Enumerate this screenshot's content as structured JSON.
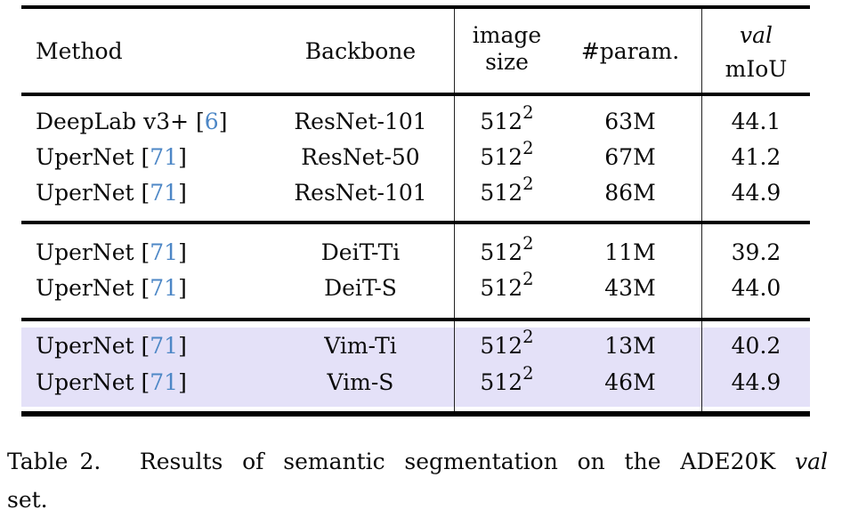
{
  "colors": {
    "highlight": "#e4e1f8",
    "citation_link": "#4d87c6",
    "text": "#0a0a0a"
  },
  "table": {
    "header": {
      "method": "Method",
      "backbone": "Backbone",
      "image_size_line1": "image",
      "image_size_line2": "size",
      "params": "#param.",
      "miou_line1": "val",
      "miou_line2": "mIoU"
    },
    "sections": [
      {
        "highlight": false,
        "rows": [
          {
            "method": "DeepLab v3+",
            "citation": "6",
            "backbone": "ResNet-101",
            "image_size": "512",
            "image_size_exp": "2",
            "params": "63M",
            "miou": "44.1"
          },
          {
            "method": "UperNet",
            "citation": "71",
            "backbone": "ResNet-50",
            "image_size": "512",
            "image_size_exp": "2",
            "params": "67M",
            "miou": "41.2"
          },
          {
            "method": "UperNet",
            "citation": "71",
            "backbone": "ResNet-101",
            "image_size": "512",
            "image_size_exp": "2",
            "params": "86M",
            "miou": "44.9"
          }
        ]
      },
      {
        "highlight": false,
        "rows": [
          {
            "method": "UperNet",
            "citation": "71",
            "backbone": "DeiT-Ti",
            "image_size": "512",
            "image_size_exp": "2",
            "params": "11M",
            "miou": "39.2"
          },
          {
            "method": "UperNet",
            "citation": "71",
            "backbone": "DeiT-S",
            "image_size": "512",
            "image_size_exp": "2",
            "params": "43M",
            "miou": "44.0"
          }
        ]
      },
      {
        "highlight": true,
        "rows": [
          {
            "method": "UperNet",
            "citation": "71",
            "backbone": "Vim-Ti",
            "image_size": "512",
            "image_size_exp": "2",
            "params": "13M",
            "miou": "40.2"
          },
          {
            "method": "UperNet",
            "citation": "71",
            "backbone": "Vim-S",
            "image_size": "512",
            "image_size_exp": "2",
            "params": "46M",
            "miou": "44.9"
          }
        ]
      }
    ]
  },
  "caption": {
    "line1_prefix": "Table 2.",
    "line1_body": "Results of semantic segmentation on the ADE20K",
    "line1_italic": "val",
    "line2": "set."
  }
}
